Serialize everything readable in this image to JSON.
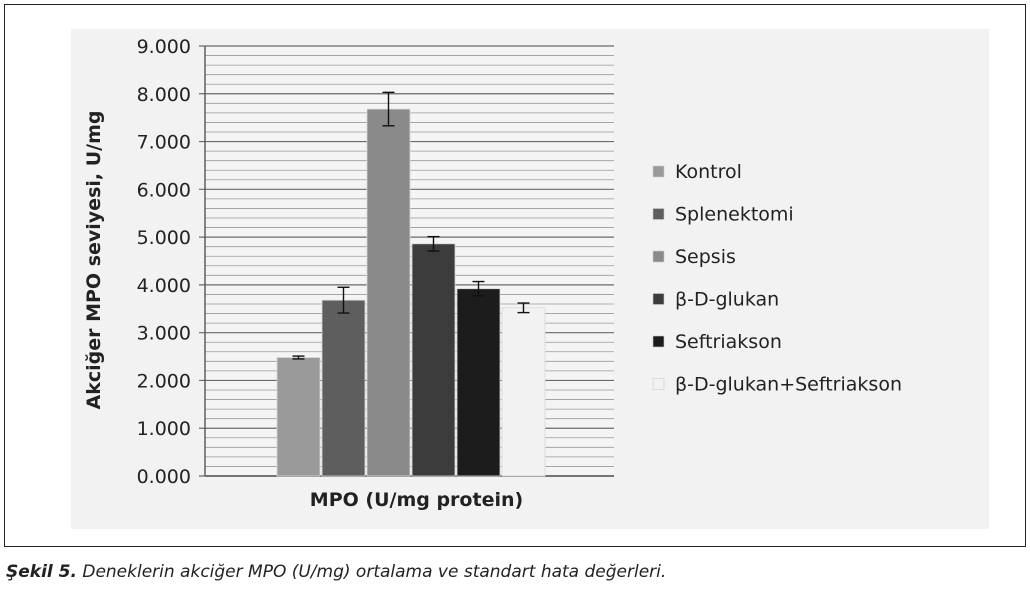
{
  "chart_data": {
    "type": "bar",
    "xlabel": "MPO (U/mg protein)",
    "ylabel": "Akciğer MPO seviyesi, U/mg",
    "ylim": [
      0,
      9
    ],
    "yticks": [
      "0.000",
      "1.000",
      "2.000",
      "3.000",
      "4.000",
      "5.000",
      "6.000",
      "7.000",
      "8.000",
      "9.000"
    ],
    "grid": true,
    "minor_grid_step": 0.2,
    "legend_position": "right",
    "categories": [
      "MPO (U/mg protein)"
    ],
    "series": [
      {
        "name": "Kontrol",
        "values": [
          2.48
        ],
        "error": [
          0.03
        ],
        "color": "#9a9a9a"
      },
      {
        "name": "Splenektomi",
        "values": [
          3.68
        ],
        "error": [
          0.27
        ],
        "color": "#5e5e5e"
      },
      {
        "name": "Sepsis",
        "values": [
          7.68
        ],
        "error": [
          0.35
        ],
        "color": "#8a8a8a"
      },
      {
        "name": "β-D-glukan",
        "values": [
          4.86
        ],
        "error": [
          0.15
        ],
        "color": "#3c3c3c"
      },
      {
        "name": "Seftriakson",
        "values": [
          3.92
        ],
        "error": [
          0.15
        ],
        "color": "#1c1c1c"
      },
      {
        "name": "β-D-glukan+Seftriakson",
        "values": [
          3.52
        ],
        "error": [
          0.1
        ],
        "color": "#f2f2f2"
      }
    ]
  },
  "caption": {
    "label": "Şekil 5.",
    "text": " Deneklerin akciğer MPO (U/mg) ortalama ve standart hata değerleri."
  }
}
